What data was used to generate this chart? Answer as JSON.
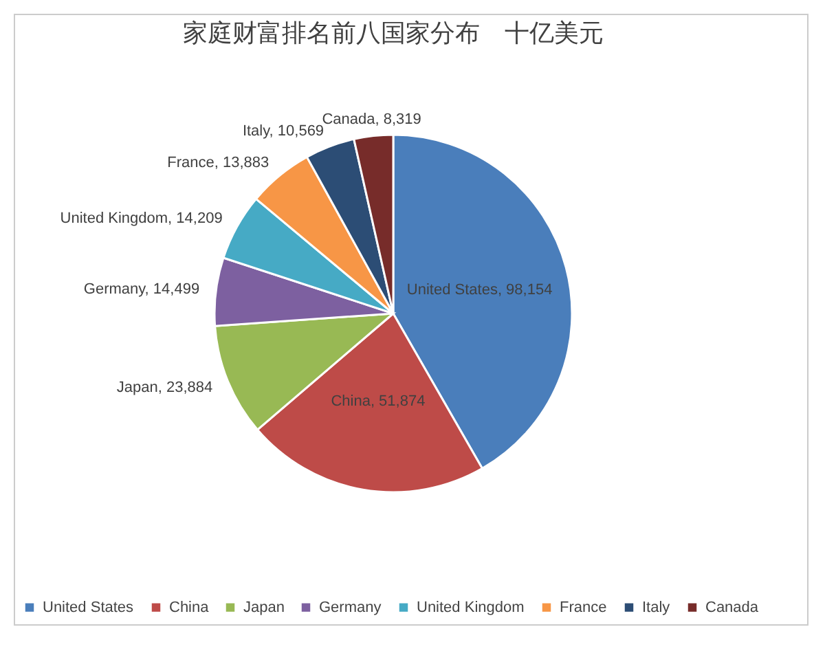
{
  "chart_data": {
    "type": "pie",
    "title": "家庭财富排名前八国家分布　十亿美元",
    "categories": [
      "United States",
      "China",
      "Japan",
      "Germany",
      "United Kingdom",
      "France",
      "Italy",
      "Canada"
    ],
    "values": [
      98154,
      51874,
      23884,
      14499,
      14209,
      13883,
      10569,
      8319
    ],
    "colors": [
      "#4a7ebb",
      "#be4b48",
      "#98b954",
      "#7d60a0",
      "#46aac5",
      "#f79646",
      "#2c4d75",
      "#772c2a"
    ],
    "value_labels": [
      ", 98,154",
      ", 51,874",
      ", 23,884",
      ", 14,499",
      ", 14,209",
      ", 13,883",
      ", 10,569",
      ", 8,319"
    ],
    "legend": "bottom"
  }
}
